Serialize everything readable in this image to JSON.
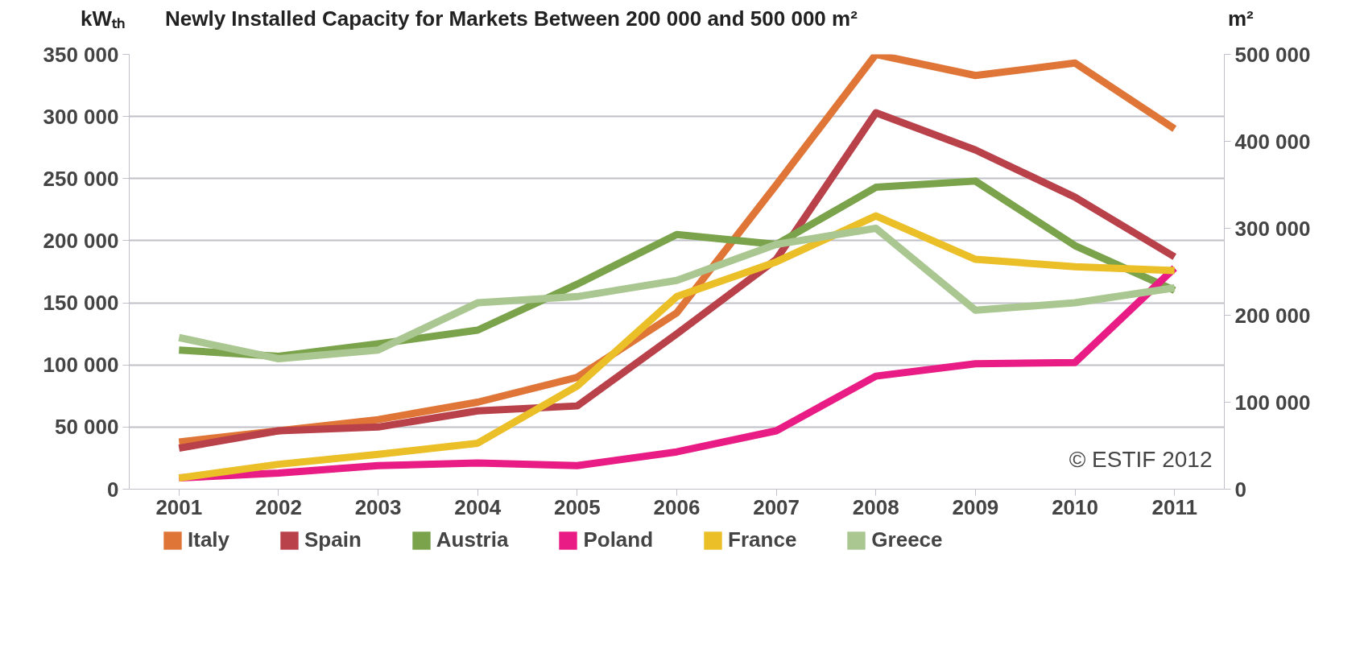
{
  "chart_data": {
    "type": "line",
    "title": "Newly Installed Capacity for Markets Between 200 000 and 500 000 m²",
    "ylabel": "kWₜₕ",
    "y2label": "m²",
    "categories": [
      "2001",
      "2002",
      "2003",
      "2004",
      "2005",
      "2006",
      "2007",
      "2008",
      "2009",
      "2010",
      "2011"
    ],
    "series": [
      {
        "name": "Italy",
        "color": "#e07538",
        "values": [
          38000,
          47000,
          56000,
          70000,
          90000,
          142000,
          245000,
          350000,
          333000,
          343000,
          290000
        ]
      },
      {
        "name": "Spain",
        "color": "#b9414a",
        "values": [
          33000,
          47000,
          50000,
          63000,
          67000,
          125000,
          185000,
          303000,
          273000,
          235000,
          187000
        ]
      },
      {
        "name": "Austria",
        "color": "#7aa34b",
        "values": [
          112000,
          107000,
          117000,
          128000,
          165000,
          205000,
          197000,
          243000,
          248000,
          196000,
          160000
        ]
      },
      {
        "name": "Poland",
        "color": "#e81c84",
        "values": [
          9000,
          13000,
          19000,
          21000,
          19000,
          30000,
          47000,
          91000,
          101000,
          102000,
          178000
        ]
      },
      {
        "name": "France",
        "color": "#ebbf27",
        "values": [
          9000,
          20000,
          28000,
          37000,
          83000,
          155000,
          183000,
          220000,
          185000,
          179000,
          176000
        ]
      },
      {
        "name": "Greece",
        "color": "#aac691",
        "values": [
          122000,
          105000,
          112000,
          150000,
          155000,
          168000,
          197000,
          210000,
          144000,
          150000,
          162000
        ]
      }
    ],
    "ylim": [
      0,
      350000
    ],
    "yticks": [
      {
        "value": 0,
        "label": "0"
      },
      {
        "value": 50000,
        "label": "50 000"
      },
      {
        "value": 100000,
        "label": "100 000"
      },
      {
        "value": 150000,
        "label": "150 000"
      },
      {
        "value": 200000,
        "label": "200 000"
      },
      {
        "value": 250000,
        "label": "250 000"
      },
      {
        "value": 300000,
        "label": "300 000"
      },
      {
        "value": 350000,
        "label": "350 000"
      }
    ],
    "y2lim": [
      0,
      500000
    ],
    "y2ticks": [
      {
        "value": 0,
        "label": "0"
      },
      {
        "value": 100000,
        "label": "100 000"
      },
      {
        "value": 200000,
        "label": "200 000"
      },
      {
        "value": 300000,
        "label": "300 000"
      },
      {
        "value": 400000,
        "label": "400 000"
      },
      {
        "value": 500000,
        "label": "500 000"
      }
    ],
    "grid": "y",
    "legend": "bottom",
    "marker": "none",
    "line_style": "solid",
    "annotations": [
      "© ESTIF 2012"
    ]
  }
}
